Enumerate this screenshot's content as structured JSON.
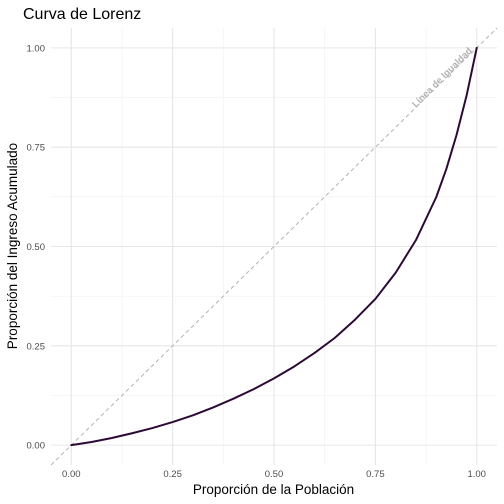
{
  "chart_data": {
    "type": "line",
    "title": "Curva de Lorenz",
    "xlabel": "Proporción de la Población",
    "ylabel": "Proporción del Ingreso Acumulado",
    "xlim": [
      -0.05,
      1.05
    ],
    "ylim": [
      -0.05,
      1.05
    ],
    "x_ticks": [
      "0.00",
      "0.25",
      "0.50",
      "0.75",
      "1.00"
    ],
    "y_ticks": [
      "0.00",
      "0.25",
      "0.50",
      "0.75",
      "1.00"
    ],
    "grid": true,
    "series": [
      {
        "role": "lorenz-curve",
        "color": "#2d0a36",
        "x": [
          0,
          0.05,
          0.1,
          0.15,
          0.2,
          0.25,
          0.3,
          0.35,
          0.4,
          0.45,
          0.5,
          0.55,
          0.6,
          0.65,
          0.7,
          0.75,
          0.8,
          0.85,
          0.9,
          0.925,
          0.95,
          0.975,
          1.0
        ],
        "y": [
          0,
          0.008,
          0.018,
          0.03,
          0.043,
          0.058,
          0.075,
          0.095,
          0.117,
          0.141,
          0.168,
          0.198,
          0.232,
          0.27,
          0.316,
          0.368,
          0.434,
          0.516,
          0.624,
          0.695,
          0.78,
          0.88,
          1.0
        ]
      },
      {
        "role": "equality-line",
        "color": "#b3b3b3",
        "dashed": true,
        "x": [
          -0.05,
          1.05
        ],
        "y": [
          -0.05,
          1.05
        ]
      }
    ],
    "annotations": [
      {
        "text": "Línea de Igualdad",
        "x": 0.92,
        "y": 0.92,
        "angle": -45
      }
    ]
  }
}
